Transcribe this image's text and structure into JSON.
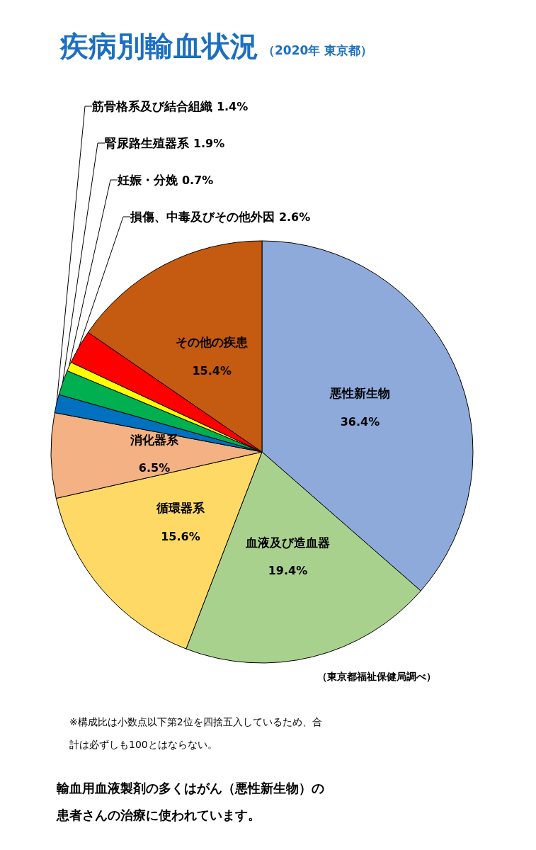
{
  "chart_data": {
    "type": "pie",
    "title": "疾病別輸血状況",
    "subtitle": "（2020年 東京都）",
    "categories": [
      "悪性新生物",
      "血液及び造血器",
      "循環器系",
      "消化器系",
      "筋骨格系及び結合組織",
      "腎尿路生殖器系",
      "妊娠・分娩",
      "損傷、中毒及びその他外因",
      "その他の疾患"
    ],
    "values": [
      36.4,
      19.4,
      15.6,
      6.5,
      1.4,
      1.9,
      0.7,
      2.6,
      15.4
    ],
    "colors": [
      "#8eaadb",
      "#a9d18e",
      "#ffd966",
      "#f4b183",
      "#0070c0",
      "#00b050",
      "#ffff00",
      "#ff0000",
      "#c55a11"
    ],
    "value_labels": [
      "36.4%",
      "19.4%",
      "15.6%",
      "6.5%",
      "1.4%",
      "1.9%",
      "0.7%",
      "2.6%",
      "15.4%"
    ],
    "legend": false,
    "annotations": [
      "（東京都福祉保健局調べ）",
      "※構成比は小数点以下第2位を四捨五入しているため、合計は必ずしも100とはならない。",
      "輸血用血液製剤の多くはがん（悪性新生物）の患者さんの治療に使われています。"
    ]
  }
}
